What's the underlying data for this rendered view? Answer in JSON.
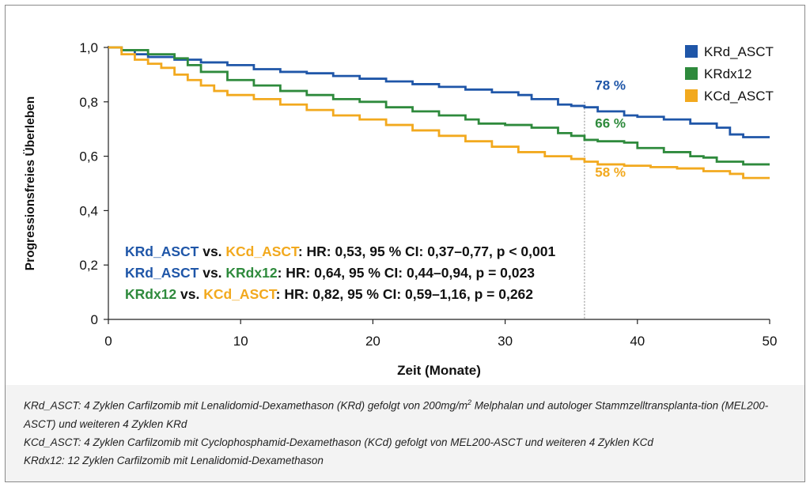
{
  "chart_data": {
    "type": "line",
    "ylabel": "Progressionsfreies Überleben",
    "xlabel": "Zeit (Monate)",
    "xlim": [
      0,
      50
    ],
    "ylim": [
      0,
      1
    ],
    "x_ticks": [
      0,
      10,
      20,
      30,
      40,
      50
    ],
    "y_ticks": [
      0,
      0.2,
      0.4,
      0.6,
      0.8,
      1.0
    ],
    "x_tick_labels": [
      "0",
      "10",
      "20",
      "30",
      "40",
      "50"
    ],
    "y_tick_labels": [
      "0",
      "0,2",
      "0,4",
      "0,6",
      "0,8",
      "1,0"
    ],
    "grid": false,
    "legend_position": "top-right",
    "reference_x": 36,
    "series": [
      {
        "name": "KRd_ASCT",
        "color": "#1f56a8",
        "end_label": "78 %",
        "x": [
          0,
          1,
          2,
          3,
          5,
          7,
          9,
          11,
          13,
          15,
          17,
          19,
          21,
          23,
          25,
          27,
          29,
          31,
          32,
          34,
          35,
          36,
          37,
          39,
          40,
          42,
          44,
          46,
          47,
          48,
          50
        ],
        "y": [
          1.0,
          0.99,
          0.975,
          0.965,
          0.955,
          0.945,
          0.935,
          0.92,
          0.91,
          0.905,
          0.895,
          0.885,
          0.875,
          0.865,
          0.855,
          0.845,
          0.835,
          0.825,
          0.81,
          0.79,
          0.785,
          0.78,
          0.765,
          0.75,
          0.745,
          0.735,
          0.72,
          0.705,
          0.68,
          0.67,
          0.67
        ]
      },
      {
        "name": "KRdx12",
        "color": "#2e8a3c",
        "end_label": "66 %",
        "x": [
          0,
          1,
          3,
          5,
          6,
          7,
          9,
          11,
          13,
          15,
          17,
          19,
          21,
          23,
          25,
          27,
          28,
          30,
          32,
          34,
          35,
          36,
          37,
          39,
          40,
          42,
          44,
          45,
          46,
          48,
          50
        ],
        "y": [
          1.0,
          0.99,
          0.975,
          0.96,
          0.935,
          0.91,
          0.88,
          0.86,
          0.84,
          0.825,
          0.81,
          0.8,
          0.78,
          0.765,
          0.75,
          0.735,
          0.72,
          0.715,
          0.705,
          0.685,
          0.675,
          0.66,
          0.655,
          0.65,
          0.63,
          0.615,
          0.6,
          0.595,
          0.58,
          0.57,
          0.57
        ]
      },
      {
        "name": "KCd_ASCT",
        "color": "#f2a91e",
        "end_label": "58 %",
        "x": [
          0,
          1,
          2,
          3,
          4,
          5,
          6,
          7,
          8,
          9,
          11,
          13,
          15,
          17,
          19,
          21,
          23,
          25,
          27,
          29,
          31,
          33,
          35,
          36,
          37,
          39,
          41,
          43,
          45,
          47,
          48,
          50
        ],
        "y": [
          1.0,
          0.975,
          0.955,
          0.94,
          0.925,
          0.9,
          0.88,
          0.86,
          0.84,
          0.825,
          0.81,
          0.79,
          0.77,
          0.75,
          0.735,
          0.715,
          0.695,
          0.675,
          0.655,
          0.635,
          0.615,
          0.6,
          0.59,
          0.58,
          0.57,
          0.565,
          0.56,
          0.555,
          0.545,
          0.535,
          0.52,
          0.52
        ]
      }
    ],
    "annotations": [
      {
        "parts": [
          {
            "text": "KRd_ASCT",
            "color": "#1f56a8"
          },
          {
            "text": " vs. ",
            "color": "#111111"
          },
          {
            "text": "KCd_ASCT",
            "color": "#f2a91e"
          },
          {
            "text": ": HR: 0,53, 95 % CI: 0,37–0,77, p < 0,001",
            "color": "#111111"
          }
        ]
      },
      {
        "parts": [
          {
            "text": "KRd_ASCT",
            "color": "#1f56a8"
          },
          {
            "text": " vs. ",
            "color": "#111111"
          },
          {
            "text": "KRdx12",
            "color": "#2e8a3c"
          },
          {
            "text": ": HR: 0,64, 95 % CI: 0,44–0,94, p = 0,023",
            "color": "#111111"
          }
        ]
      },
      {
        "parts": [
          {
            "text": "KRdx12",
            "color": "#2e8a3c"
          },
          {
            "text": " vs. ",
            "color": "#111111"
          },
          {
            "text": "KCd_ASCT",
            "color": "#f2a91e"
          },
          {
            "text": ": HR: 0,82, 95 % CI: 0,59–1,16, p = 0,262",
            "color": "#111111"
          }
        ]
      }
    ]
  },
  "footnotes": {
    "line1_a": "KRd_ASCT: 4 Zyklen Carfilzomib mit Lenalidomid-Dexamethason (KRd) gefolgt von 200mg/m",
    "line1_sup": "2",
    "line1_b": " Melphalan und autologer Stammzelltransplanta-tion (MEL200-ASCT) und weiteren 4 Zyklen KRd",
    "line2": "KCd_ASCT: 4 Zyklen Carfilzomib mit Cyclophosphamid-Dexamethason (KCd) gefolgt von MEL200-ASCT und weiteren 4 Zyklen KCd",
    "line3": "KRdx12: 12 Zyklen Carfilzomib mit Lenalidomid-Dexamethason"
  }
}
